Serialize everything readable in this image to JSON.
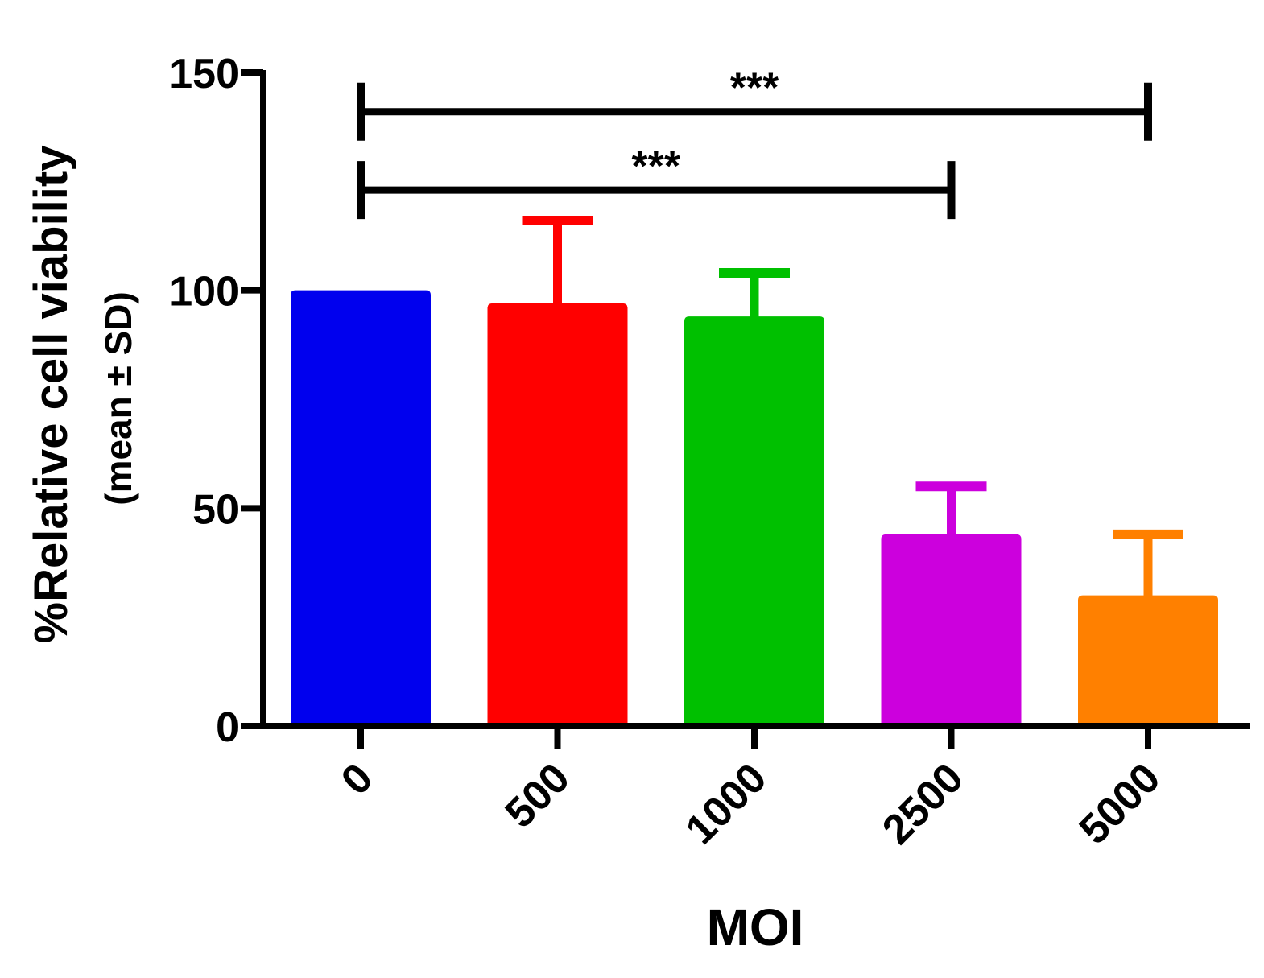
{
  "chart_data": {
    "type": "bar",
    "categories": [
      "0",
      "500",
      "1000",
      "2500",
      "5000"
    ],
    "values": [
      100,
      97,
      94,
      44,
      30
    ],
    "errors": [
      0,
      19,
      10,
      11,
      14
    ],
    "colors": [
      "#0000ee",
      "#ff0000",
      "#00c000",
      "#cc00dd",
      "#ff8000"
    ],
    "xlabel": "MOI",
    "ylabel_line1": "%Relative cell viability",
    "ylabel_line2": "(mean ± SD)",
    "ylim": [
      0,
      150
    ],
    "yticks": [
      0,
      50,
      100,
      150
    ],
    "grid": false,
    "significance": [
      {
        "from": "0",
        "to": "5000",
        "y": 141,
        "label": "***"
      },
      {
        "from": "0",
        "to": "2500",
        "y": 123,
        "label": "***"
      }
    ]
  }
}
